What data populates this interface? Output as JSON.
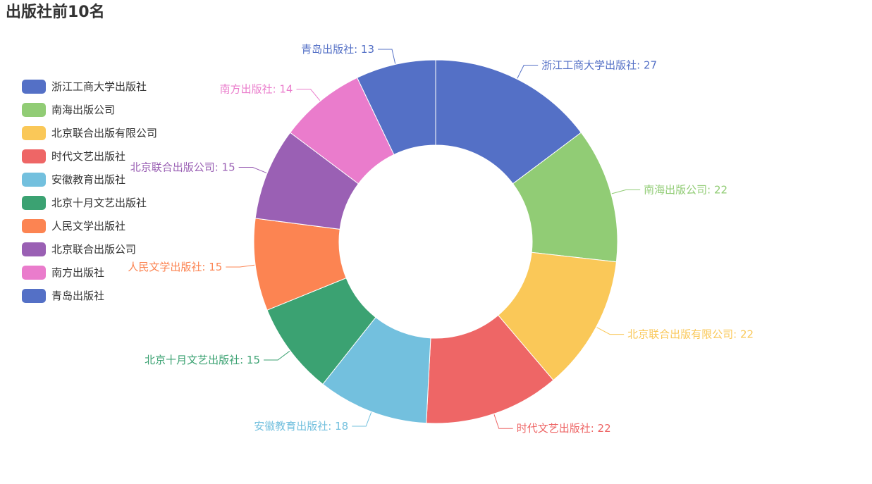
{
  "title": "出版社前10名",
  "chart_data": {
    "type": "pie",
    "variant": "donut",
    "title": "出版社前10名",
    "legend_position": "left",
    "label_format": "{name}: {value}",
    "series": [
      {
        "name": "浙江工商大学出版社",
        "value": 27,
        "color": "#5470c6"
      },
      {
        "name": "南海出版公司",
        "value": 22,
        "color": "#91cc75"
      },
      {
        "name": "北京联合出版有限公司",
        "value": 22,
        "color": "#fac858"
      },
      {
        "name": "时代文艺出版社",
        "value": 22,
        "color": "#ee6666"
      },
      {
        "name": "安徽教育出版社",
        "value": 18,
        "color": "#73c0de"
      },
      {
        "name": "北京十月文艺出版社",
        "value": 15,
        "color": "#3ba272"
      },
      {
        "name": "人民文学出版社",
        "value": 15,
        "color": "#fc8452"
      },
      {
        "name": "北京联合出版公司",
        "value": 15,
        "color": "#9a60b4"
      },
      {
        "name": "南方出版社",
        "value": 14,
        "color": "#ea7ccc"
      },
      {
        "name": "青岛出版社",
        "value": 13,
        "color": "#5470c6"
      }
    ]
  }
}
